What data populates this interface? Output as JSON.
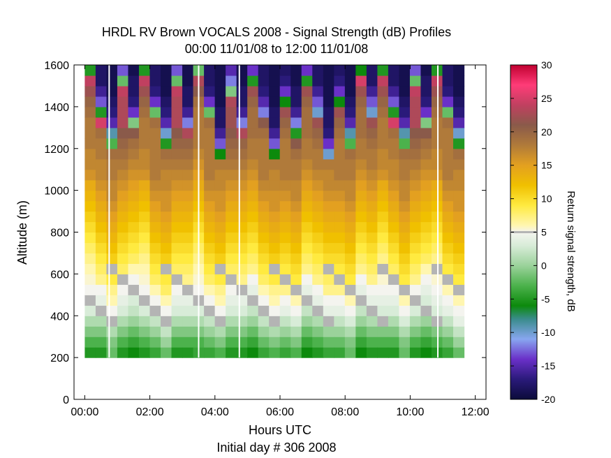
{
  "chart_data": {
    "type": "heatmap",
    "title": "HRDL RV Brown VOCALS 2008 - Signal Strength (dB) Profiles",
    "subtitle": "00:00 11/01/08 to 12:00 11/01/08",
    "xlabel": "Hours UTC",
    "xlabel2": "Initial day # 306  2008",
    "ylabel": "Altitude (m)",
    "colorbar_label": "Return signal strength, dB",
    "xlim": [
      -0.33,
      12.33
    ],
    "ylim": [
      0,
      1600
    ],
    "xticks": [
      0,
      2,
      4,
      6,
      8,
      10,
      12
    ],
    "xtick_labels": [
      "00:00",
      "02:00",
      "04:00",
      "06:00",
      "08:00",
      "10:00",
      "12:00"
    ],
    "yticks": [
      0,
      200,
      400,
      600,
      800,
      1000,
      1200,
      1400,
      1600
    ],
    "ytick_labels": [
      "0",
      "200",
      "400",
      "600",
      "800",
      "1000",
      "1200",
      "1400",
      "1600"
    ],
    "clim": [
      -20,
      30
    ],
    "cticks": [
      -20,
      -15,
      -10,
      -5,
      0,
      5,
      10,
      15,
      20,
      25,
      30
    ],
    "ctick_labels": [
      "-20",
      "-15",
      "-10",
      "-5",
      "0",
      "5",
      "10",
      "15",
      "20",
      "25",
      "30"
    ],
    "colormap": [
      [
        -20,
        "#0b0b3a"
      ],
      [
        -17,
        "#2a1a7a"
      ],
      [
        -14,
        "#6a30c8"
      ],
      [
        -11,
        "#88a6f0"
      ],
      [
        -8,
        "#3a8c8c"
      ],
      [
        -6,
        "#0c8a0c"
      ],
      [
        -3,
        "#4cb24c"
      ],
      [
        0,
        "#9bd29b"
      ],
      [
        3,
        "#d8ecd8"
      ],
      [
        5,
        "#f4f4ef"
      ],
      [
        6,
        "#fff6b0"
      ],
      [
        9,
        "#ffea40"
      ],
      [
        12,
        "#f0c000"
      ],
      [
        15,
        "#e3a020"
      ],
      [
        18,
        "#b07a3a"
      ],
      [
        21,
        "#8a5a4a"
      ],
      [
        24,
        "#c04060"
      ],
      [
        27,
        "#ff3c78"
      ],
      [
        30,
        "#c00030"
      ]
    ],
    "grey_threshold_color": "#b4b4b4",
    "time_start": 0.0,
    "time_step": 0.333,
    "altitude_start": 200,
    "altitude_step": 50,
    "profile_values_start_at_200m_step_50m": [
      [
        -5,
        -3,
        -1,
        1,
        3,
        4,
        5,
        5.5,
        6,
        7,
        8,
        9,
        10,
        11,
        12,
        13,
        14,
        16,
        17,
        17,
        18,
        18,
        18,
        19,
        20,
        22,
        24,
        -5,
        -13,
        -16,
        -18,
        -18,
        -18,
        -18,
        -19,
        -19,
        -19,
        -19,
        -19
      ],
      [
        -4,
        -3,
        -1,
        1,
        3,
        4,
        5,
        5.5,
        6,
        7,
        8,
        9,
        10,
        11,
        12,
        13,
        14,
        15,
        16,
        17,
        18,
        18,
        18,
        18,
        19,
        21,
        23,
        -2,
        -12,
        -15,
        -17,
        -18,
        -18,
        -18,
        -19,
        -19,
        -19,
        -19,
        -19
      ],
      [
        -6,
        -4,
        -2,
        0,
        2,
        3,
        4,
        5,
        7,
        8,
        9,
        10,
        11,
        12,
        13,
        14,
        15,
        16,
        17,
        18,
        18,
        19,
        19,
        19,
        20,
        22,
        -5,
        -14,
        -17,
        -18,
        -18,
        -19,
        -19,
        -19,
        -19,
        -19,
        -19,
        -19,
        -19
      ],
      [
        -6,
        -4,
        -2,
        0,
        2,
        3,
        4,
        5,
        7,
        8,
        9,
        10,
        11,
        12,
        13,
        14,
        15,
        16,
        17,
        18,
        18,
        19,
        19,
        19,
        20,
        22,
        25,
        -6,
        -14,
        -17,
        -18,
        -19,
        -19,
        -19,
        -19,
        -19,
        -19,
        -19,
        -19
      ],
      [
        -5,
        -3,
        -1,
        1,
        3,
        4,
        5,
        7,
        8,
        9,
        10,
        11,
        12,
        13,
        14,
        15,
        16,
        17,
        18,
        19,
        20,
        21,
        23,
        23,
        23,
        24,
        -2,
        -13,
        -16,
        -18,
        -18,
        -18,
        -19,
        -19,
        -19,
        -19,
        -19,
        -19,
        -19
      ],
      [
        -5,
        -3,
        -1,
        1,
        3,
        4,
        5,
        7,
        8,
        9,
        10,
        11,
        12,
        13,
        14,
        15,
        16,
        17,
        18,
        19,
        20,
        21,
        22,
        22,
        23,
        -1,
        -12,
        -15,
        -17,
        -18,
        -18,
        -19,
        -19,
        -19,
        -19,
        -19,
        -19,
        -19,
        -19
      ],
      [
        -4,
        -2,
        0,
        2,
        4,
        5,
        7,
        8,
        9,
        10,
        11,
        12,
        13,
        14,
        15,
        16,
        17,
        18,
        18,
        18,
        18,
        19,
        20,
        22,
        -6,
        -14,
        -17,
        -18,
        -18,
        -19,
        -19,
        -19,
        -19,
        -19,
        -19,
        -19,
        -19,
        -19,
        -19
      ],
      [
        -5,
        -3,
        -1,
        1,
        3,
        4,
        5,
        7,
        8,
        9,
        10,
        11,
        12,
        13,
        14,
        15,
        16,
        17,
        17,
        18,
        18,
        19,
        25,
        -5,
        -13,
        -16,
        -18,
        -18,
        -18,
        -19,
        -19,
        -19,
        -19,
        -19,
        -19,
        -19,
        -19,
        -19,
        -19
      ],
      [
        -4,
        -2,
        0,
        2,
        4,
        5,
        6,
        8,
        9,
        10,
        11,
        12,
        13,
        14,
        15,
        16,
        17,
        18,
        18,
        18,
        18,
        18,
        19,
        -2,
        -14,
        -17,
        -18,
        -18,
        -19,
        -19,
        -19,
        -19,
        -19,
        -19,
        -19,
        -19,
        -19,
        -19,
        -19
      ],
      [
        -4,
        -2,
        0,
        2,
        4,
        5,
        6,
        8,
        9,
        10,
        11,
        12,
        13,
        14,
        15,
        16,
        17,
        18,
        18,
        18,
        18,
        19,
        21,
        -12,
        -15,
        -17,
        -18,
        -18,
        -19,
        -19,
        -19,
        -19,
        -19,
        -19,
        -19,
        -19,
        -19,
        -19,
        -19
      ],
      [
        -5,
        -3,
        -1,
        1,
        3,
        4,
        5,
        7,
        8,
        9,
        10,
        11,
        12,
        13,
        14,
        15,
        16,
        17,
        18,
        18,
        19,
        20,
        22,
        -10,
        -13,
        -16,
        -18,
        -18,
        -19,
        -19,
        -19,
        -19,
        -19,
        -19,
        -19,
        -19,
        -19,
        -19,
        -19
      ],
      [
        -6,
        -4,
        -2,
        0,
        2,
        3,
        4,
        5,
        6,
        8,
        9,
        10,
        11,
        12,
        13,
        14,
        15,
        16,
        17,
        18,
        19,
        21,
        -1,
        -14,
        -17,
        -18,
        -18,
        -19,
        -19,
        -19,
        -19,
        -19,
        -19,
        -19,
        -19,
        -19,
        -19,
        -19,
        -19
      ],
      [
        -5,
        -3,
        -1,
        1,
        3,
        4,
        5,
        7,
        8,
        9,
        10,
        11,
        12,
        13,
        14,
        15,
        16,
        17,
        18,
        19,
        20,
        23,
        -12,
        -16,
        -18,
        -18,
        -19,
        -19,
        -19,
        -19,
        -19,
        -19,
        -19,
        -19,
        -19,
        -19,
        -19,
        -19,
        -19
      ],
      [
        -3,
        -1,
        1,
        3,
        5,
        6,
        8,
        9,
        10,
        11,
        12,
        13,
        14,
        15,
        16,
        17,
        17,
        18,
        18,
        19,
        21,
        -5,
        -12,
        -16,
        -18,
        -18,
        -19,
        -19,
        -19,
        -19,
        -19,
        -19,
        -19,
        -19,
        -19,
        -19,
        -19,
        -19,
        -19
      ],
      [
        -2,
        -1,
        1,
        3,
        5,
        6,
        7,
        9,
        10,
        11,
        12,
        13,
        14,
        15,
        16,
        17,
        17,
        18,
        18,
        19,
        -3,
        -9,
        -15,
        -17,
        -18,
        -19,
        -19,
        -19,
        -19,
        -19,
        -19,
        -19,
        -19,
        -19,
        -19,
        -19,
        -19,
        -19,
        -19
      ],
      [
        -2,
        0,
        2,
        4,
        5,
        6,
        8,
        9,
        10,
        11,
        12,
        13,
        14,
        15,
        16,
        16,
        17,
        17,
        18,
        19,
        -5,
        -10,
        -15,
        -17,
        -18,
        -19,
        -19,
        -19,
        -19,
        -19,
        -19,
        -19,
        -19,
        -19,
        -19,
        -19,
        -19,
        -19,
        -19
      ],
      [
        -3,
        -1,
        1,
        3,
        5,
        6,
        7,
        9,
        10,
        11,
        12,
        13,
        14,
        15,
        16,
        16,
        17,
        17,
        18,
        -6,
        -13,
        -16,
        -18,
        -18,
        -19,
        -19,
        -19,
        -19,
        -19,
        -19,
        -19,
        -19,
        -19,
        -19,
        -19,
        -19,
        -19,
        -19,
        -19
      ],
      [
        -4,
        -2,
        0,
        2,
        4,
        5,
        7,
        8,
        9,
        10,
        11,
        12,
        13,
        14,
        15,
        16,
        17,
        17,
        18,
        -10,
        -14,
        -17,
        -18,
        -18,
        -19,
        -19,
        -19,
        -19,
        -19,
        -19,
        -19,
        -19,
        -19,
        -19,
        -19,
        -19,
        -19,
        -19,
        -19
      ]
    ]
  }
}
